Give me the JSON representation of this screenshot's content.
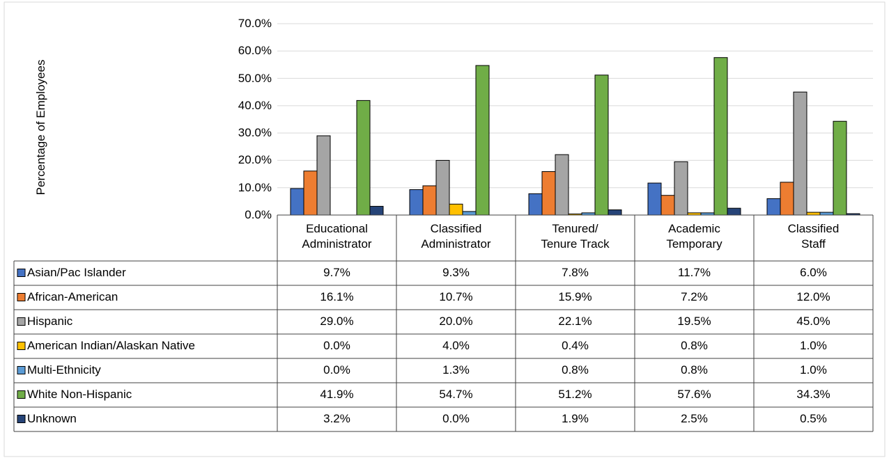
{
  "chart_data": {
    "type": "bar",
    "y_label": "Percentage of Employees",
    "categories": [
      "Educational\nAdministrator",
      "Classified\nAdministrator",
      "Tenured/\nTenure Track",
      "Academic\nTemporary",
      "Classified\nStaff"
    ],
    "series": [
      {
        "name": "Asian/Pac Islander",
        "color": "#4472c4",
        "values": [
          9.7,
          9.3,
          7.8,
          11.7,
          6.0
        ],
        "value_labels": [
          "9.7%",
          "9.3%",
          "7.8%",
          "11.7%",
          "6.0%"
        ]
      },
      {
        "name": "African-American",
        "color": "#ed7d31",
        "values": [
          16.1,
          10.7,
          15.9,
          7.2,
          12.0
        ],
        "value_labels": [
          "16.1%",
          "10.7%",
          "15.9%",
          "7.2%",
          "12.0%"
        ]
      },
      {
        "name": "Hispanic",
        "color": "#a5a5a5",
        "values": [
          29.0,
          20.0,
          22.1,
          19.5,
          45.0
        ],
        "value_labels": [
          "29.0%",
          "20.0%",
          "22.1%",
          "19.5%",
          "45.0%"
        ]
      },
      {
        "name": "American Indian/Alaskan Native",
        "color": "#ffc000",
        "values": [
          0.0,
          4.0,
          0.4,
          0.8,
          1.0
        ],
        "value_labels": [
          "0.0%",
          "4.0%",
          "0.4%",
          "0.8%",
          "1.0%"
        ]
      },
      {
        "name": "Multi-Ethnicity",
        "color": "#5b9bd5",
        "values": [
          0.0,
          1.3,
          0.8,
          0.8,
          1.0
        ],
        "value_labels": [
          "0.0%",
          "1.3%",
          "0.8%",
          "0.8%",
          "1.0%"
        ]
      },
      {
        "name": "White Non-Hispanic",
        "color": "#70ad47",
        "values": [
          41.9,
          54.7,
          51.2,
          57.6,
          34.3
        ],
        "value_labels": [
          "41.9%",
          "54.7%",
          "51.2%",
          "57.6%",
          "34.3%"
        ]
      },
      {
        "name": "Unknown",
        "color": "#264478",
        "values": [
          3.2,
          0.0,
          1.9,
          2.5,
          0.5
        ],
        "value_labels": [
          "3.2%",
          "0.0%",
          "1.9%",
          "2.5%",
          "0.5%"
        ]
      }
    ],
    "ylim": [
      0,
      70
    ],
    "yticks": [
      {
        "value": 0,
        "label": "0.0%"
      },
      {
        "value": 10,
        "label": "10.0%"
      },
      {
        "value": 20,
        "label": "20.0%"
      },
      {
        "value": 30,
        "label": "30.0%"
      },
      {
        "value": 40,
        "label": "40.0%"
      },
      {
        "value": 50,
        "label": "50.0%"
      },
      {
        "value": 60,
        "label": "60.0%"
      },
      {
        "value": 70,
        "label": "70.0%"
      }
    ],
    "grid": true
  }
}
